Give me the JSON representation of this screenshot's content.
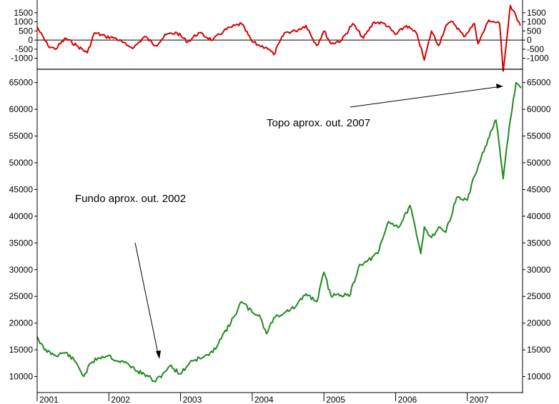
{
  "chart_data": [
    {
      "type": "line",
      "panel": "indicator",
      "color": "#d40000",
      "baseline": 0,
      "ylim": [
        -1600,
        2200
      ],
      "y_ticks": [
        -1000,
        -500,
        0,
        500,
        1000,
        1500
      ],
      "y_tick_labels": [
        "-1000",
        "-500",
        "0",
        "500",
        "1000",
        "1500"
      ],
      "x": [
        2001.0,
        2001.15,
        2001.25,
        2001.4,
        2001.55,
        2001.7,
        2001.8,
        2001.95,
        2002.1,
        2002.25,
        2002.35,
        2002.5,
        2002.65,
        2002.8,
        2002.95,
        2003.1,
        2003.25,
        2003.45,
        2003.6,
        2003.7,
        2003.85,
        2004.0,
        2004.1,
        2004.2,
        2004.3,
        2004.45,
        2004.6,
        2004.75,
        2004.9,
        2005.0,
        2005.1,
        2005.25,
        2005.4,
        2005.55,
        2005.7,
        2005.85,
        2006.0,
        2006.15,
        2006.3,
        2006.4,
        2006.5,
        2006.6,
        2006.7,
        2006.8,
        2006.95,
        2007.1,
        2007.15,
        2007.3,
        2007.45,
        2007.5,
        2007.6,
        2007.68,
        2007.74
      ],
      "y": [
        700,
        -300,
        -500,
        100,
        -300,
        -700,
        400,
        200,
        100,
        -300,
        -400,
        200,
        -300,
        300,
        400,
        -100,
        400,
        0,
        500,
        700,
        900,
        -100,
        -300,
        -400,
        -800,
        400,
        500,
        800,
        -300,
        500,
        -200,
        0,
        900,
        100,
        1000,
        900,
        300,
        800,
        300,
        -1100,
        500,
        -300,
        800,
        1000,
        200,
        900,
        -200,
        1100,
        900,
        -1700,
        1900,
        1300,
        800
      ]
    },
    {
      "type": "line",
      "panel": "main",
      "color": "#1f8a1f",
      "ylim": [
        7000,
        67500
      ],
      "xlim": [
        2001.0,
        2007.77
      ],
      "y_ticks": [
        10000,
        15000,
        20000,
        25000,
        30000,
        35000,
        40000,
        45000,
        50000,
        55000,
        60000,
        65000
      ],
      "y_tick_labels": [
        "10000",
        "15000",
        "20000",
        "25000",
        "30000",
        "35000",
        "40000",
        "45000",
        "50000",
        "55000",
        "60000",
        "65000"
      ],
      "x_ticks": [
        2001,
        2002,
        2003,
        2004,
        2005,
        2006,
        2007
      ],
      "x_tick_labels": [
        "2001",
        "2002",
        "2003",
        "2004",
        "2005",
        "2006",
        "2007"
      ],
      "x": [
        2001.0,
        2001.1,
        2001.25,
        2001.4,
        2001.55,
        2001.65,
        2001.75,
        2001.85,
        2002.0,
        2002.1,
        2002.25,
        2002.4,
        2002.55,
        2002.65,
        2002.75,
        2002.85,
        2003.0,
        2003.15,
        2003.3,
        2003.45,
        2003.55,
        2003.7,
        2003.85,
        2004.0,
        2004.1,
        2004.2,
        2004.3,
        2004.45,
        2004.6,
        2004.75,
        2004.9,
        2005.0,
        2005.1,
        2005.2,
        2005.35,
        2005.5,
        2005.6,
        2005.75,
        2005.9,
        2006.05,
        2006.2,
        2006.35,
        2006.4,
        2006.5,
        2006.6,
        2006.7,
        2006.85,
        2007.0,
        2007.1,
        2007.25,
        2007.4,
        2007.5,
        2007.55,
        2007.6,
        2007.68,
        2007.75
      ],
      "y": [
        17500,
        15000,
        14000,
        14500,
        12500,
        10000,
        12500,
        13500,
        14000,
        13000,
        12500,
        11000,
        10000,
        9000,
        10500,
        12000,
        10500,
        13000,
        13500,
        14500,
        17000,
        20000,
        24000,
        22000,
        21500,
        18000,
        21000,
        22000,
        23000,
        25500,
        24000,
        29500,
        25000,
        25500,
        25000,
        31000,
        31500,
        33000,
        39000,
        38000,
        42000,
        33000,
        38000,
        36000,
        38000,
        37000,
        43500,
        43000,
        47500,
        53000,
        58000,
        47000,
        53000,
        58000,
        65000,
        64000
      ]
    }
  ],
  "annotations": [
    {
      "text": "Topo aprox. out. 2007"
    },
    {
      "text": "Fundo aprox. out. 2002"
    }
  ],
  "colors": {
    "background": "#ffffff",
    "axis": "#000000"
  }
}
